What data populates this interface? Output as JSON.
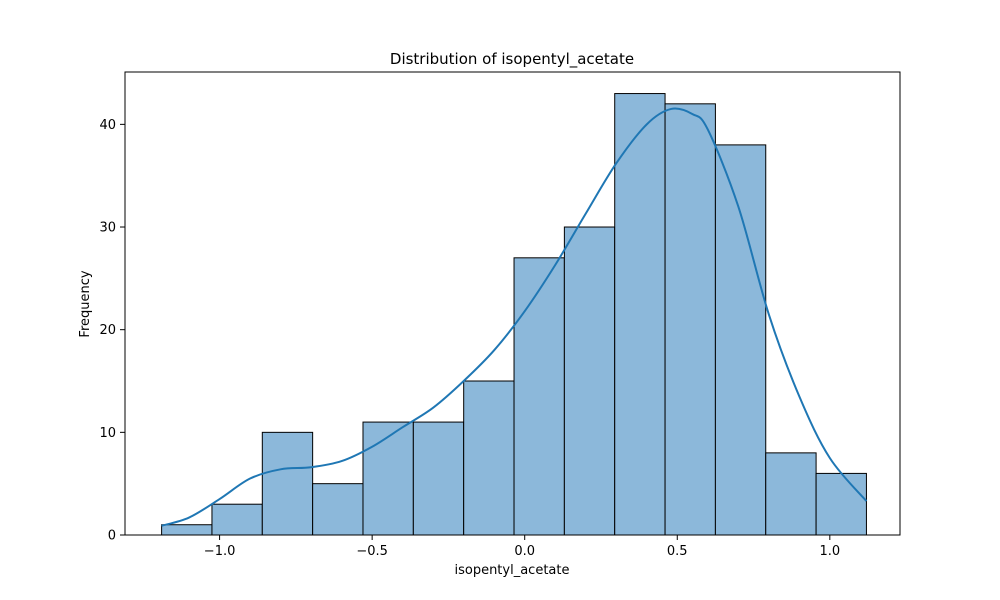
{
  "chart_data": {
    "type": "bar",
    "title": "Distribution of isopentyl_acetate",
    "xlabel": "isopentyl_acetate",
    "ylabel": "Frequency",
    "xlim": [
      -1.31,
      1.23
    ],
    "ylim": [
      0,
      45.1
    ],
    "x_ticks": [
      {
        "value": -1.0,
        "label": "−1.0"
      },
      {
        "value": -0.5,
        "label": "−0.5"
      },
      {
        "value": 0.0,
        "label": "0.0"
      },
      {
        "value": 0.5,
        "label": "0.5"
      },
      {
        "value": 1.0,
        "label": "1.0"
      }
    ],
    "y_ticks": [
      {
        "value": 0,
        "label": "0"
      },
      {
        "value": 10,
        "label": "10"
      },
      {
        "value": 20,
        "label": "20"
      },
      {
        "value": 30,
        "label": "30"
      },
      {
        "value": 40,
        "label": "40"
      }
    ],
    "bins": [
      {
        "x0": -1.19,
        "x1": -1.025,
        "count": 1
      },
      {
        "x0": -1.025,
        "x1": -0.86,
        "count": 3
      },
      {
        "x0": -0.86,
        "x1": -0.695,
        "count": 10
      },
      {
        "x0": -0.695,
        "x1": -0.53,
        "count": 5
      },
      {
        "x0": -0.53,
        "x1": -0.365,
        "count": 11
      },
      {
        "x0": -0.365,
        "x1": -0.2,
        "count": 11
      },
      {
        "x0": -0.2,
        "x1": -0.035,
        "count": 15
      },
      {
        "x0": -0.035,
        "x1": 0.13,
        "count": 27
      },
      {
        "x0": 0.13,
        "x1": 0.295,
        "count": 30
      },
      {
        "x0": 0.295,
        "x1": 0.46,
        "count": 43
      },
      {
        "x0": 0.46,
        "x1": 0.625,
        "count": 42
      },
      {
        "x0": 0.625,
        "x1": 0.79,
        "count": 38
      },
      {
        "x0": 0.79,
        "x1": 0.955,
        "count": 8
      },
      {
        "x0": 0.955,
        "x1": 1.12,
        "count": 6
      }
    ],
    "kde": {
      "x": [
        -1.19,
        -1.1,
        -1.0,
        -0.9,
        -0.8,
        -0.7,
        -0.6,
        -0.5,
        -0.4,
        -0.3,
        -0.2,
        -0.1,
        0.0,
        0.1,
        0.2,
        0.3,
        0.4,
        0.48,
        0.55,
        0.6,
        0.7,
        0.8,
        0.9,
        1.0,
        1.12
      ],
      "y": [
        0.9,
        1.7,
        3.5,
        5.5,
        6.4,
        6.6,
        7.2,
        8.6,
        10.5,
        12.4,
        15.0,
        18.0,
        21.8,
        26.3,
        31.3,
        36.2,
        40.0,
        41.5,
        41.0,
        39.5,
        32.0,
        21.5,
        13.5,
        7.5,
        3.3
      ]
    },
    "colors": {
      "bar_fill": "#8cb8da",
      "bar_edge": "#000000",
      "kde_line": "#1f77b4"
    },
    "grid": false,
    "legend": "none"
  }
}
